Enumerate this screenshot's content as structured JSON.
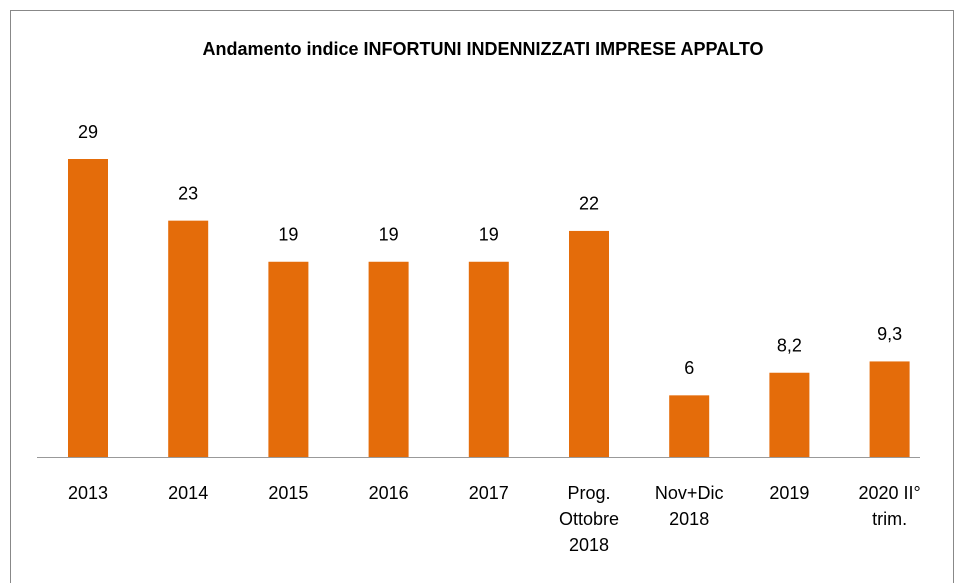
{
  "chart_data": {
    "type": "bar",
    "title": "Andamento indice INFORTUNI INDENNIZZATI IMPRESE APPALTO",
    "categories": [
      "2013",
      "2014",
      "2015",
      "2016",
      "2017",
      "Prog. Ottobre 2018",
      "Nov+Dic 2018",
      "2019",
      "2020 II° trim."
    ],
    "values": [
      29,
      23,
      19,
      19,
      19,
      22,
      6,
      8.2,
      9.3
    ],
    "value_labels": [
      "29",
      "23",
      "19",
      "19",
      "19",
      "22",
      "6",
      "8,2",
      "9,3"
    ],
    "color": "#e46c0a"
  }
}
